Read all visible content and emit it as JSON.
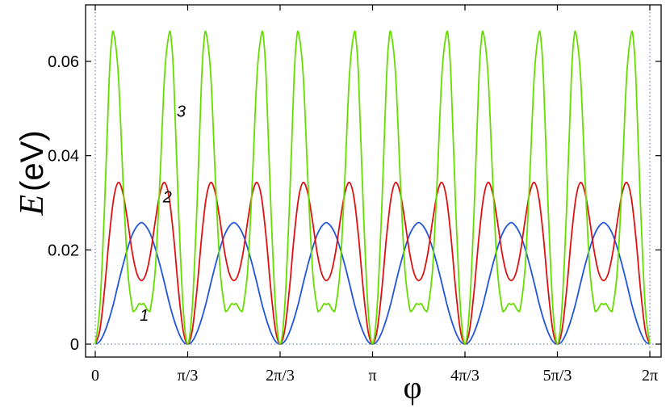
{
  "chart_data": {
    "type": "line",
    "xlabel": "φ",
    "ylabel": "E (eV)",
    "ylabel_symbol": "E",
    "ylabel_unit": "(eV)",
    "xlim": [
      0,
      6.2832
    ],
    "ylim": [
      -0.002,
      0.07
    ],
    "x_ticks": [
      {
        "value": 0,
        "label": "0"
      },
      {
        "value": 1.0472,
        "label": "π/3"
      },
      {
        "value": 2.0944,
        "label": "2π/3"
      },
      {
        "value": 3.1416,
        "label": "π"
      },
      {
        "value": 4.1888,
        "label": "4π/3"
      },
      {
        "value": 5.236,
        "label": "5π/3"
      },
      {
        "value": 6.2832,
        "label": "2π"
      }
    ],
    "y_ticks": [
      {
        "value": 0,
        "label": "0"
      },
      {
        "value": 0.02,
        "label": "0.02"
      },
      {
        "value": 0.04,
        "label": "0.04"
      },
      {
        "value": 0.06,
        "label": "0.06"
      }
    ],
    "grid": false,
    "period": 1.0472,
    "series": [
      {
        "name": "1",
        "color": "#2255dd",
        "x": [
          0,
          0.0524,
          0.1047,
          0.1571,
          0.2094,
          0.2618,
          0.3142,
          0.3665,
          0.4189,
          0.4712,
          0.5236,
          0.576,
          0.6283,
          0.6807,
          0.733,
          0.7854,
          0.8378,
          0.8901,
          0.9425,
          0.9948,
          1.0472
        ],
        "values": [
          0,
          0.0006,
          0.0025,
          0.0053,
          0.0088,
          0.0129,
          0.0168,
          0.0203,
          0.0232,
          0.025,
          0.0258,
          0.025,
          0.0232,
          0.0203,
          0.0168,
          0.0129,
          0.0088,
          0.0053,
          0.0025,
          0.0006,
          0
        ]
      },
      {
        "name": "2",
        "color": "#e01010",
        "x": [
          0,
          0.0524,
          0.1047,
          0.1571,
          0.2094,
          0.2618,
          0.3142,
          0.3665,
          0.4189,
          0.4712,
          0.5236,
          0.576,
          0.6283,
          0.6807,
          0.733,
          0.7854,
          0.8378,
          0.8901,
          0.9425,
          0.9948,
          1.0472
        ],
        "values": [
          0,
          0.003,
          0.0115,
          0.0225,
          0.031,
          0.0343,
          0.032,
          0.0262,
          0.0195,
          0.015,
          0.0135,
          0.015,
          0.0195,
          0.0262,
          0.032,
          0.0343,
          0.031,
          0.0225,
          0.0115,
          0.003,
          0
        ]
      },
      {
        "name": "3",
        "color": "#66dd00",
        "x": [
          0,
          0.0524,
          0.1047,
          0.1571,
          0.1833,
          0.2094,
          0.2618,
          0.3142,
          0.3665,
          0.4189,
          0.4451,
          0.4712,
          0.4974,
          0.5236,
          0.5498,
          0.576,
          0.6021,
          0.6283,
          0.6807,
          0.733,
          0.7854,
          0.8378,
          0.8639,
          0.8901,
          0.9425,
          0.9948,
          1.0472
        ],
        "values": [
          0,
          0.008,
          0.029,
          0.056,
          0.064,
          0.066,
          0.057,
          0.035,
          0.016,
          0.0078,
          0.0071,
          0.0078,
          0.0086,
          0.0084,
          0.0086,
          0.0078,
          0.0071,
          0.0078,
          0.016,
          0.035,
          0.057,
          0.066,
          0.064,
          0.056,
          0.029,
          0.008,
          0
        ]
      }
    ],
    "annotations": [
      {
        "text": "1",
        "x": 5.3,
        "y": 0.0062
      },
      {
        "text": "2",
        "x": 7.8,
        "y": 0.0313
      },
      {
        "text": "3",
        "x": 9.3,
        "y": 0.0495
      }
    ]
  }
}
